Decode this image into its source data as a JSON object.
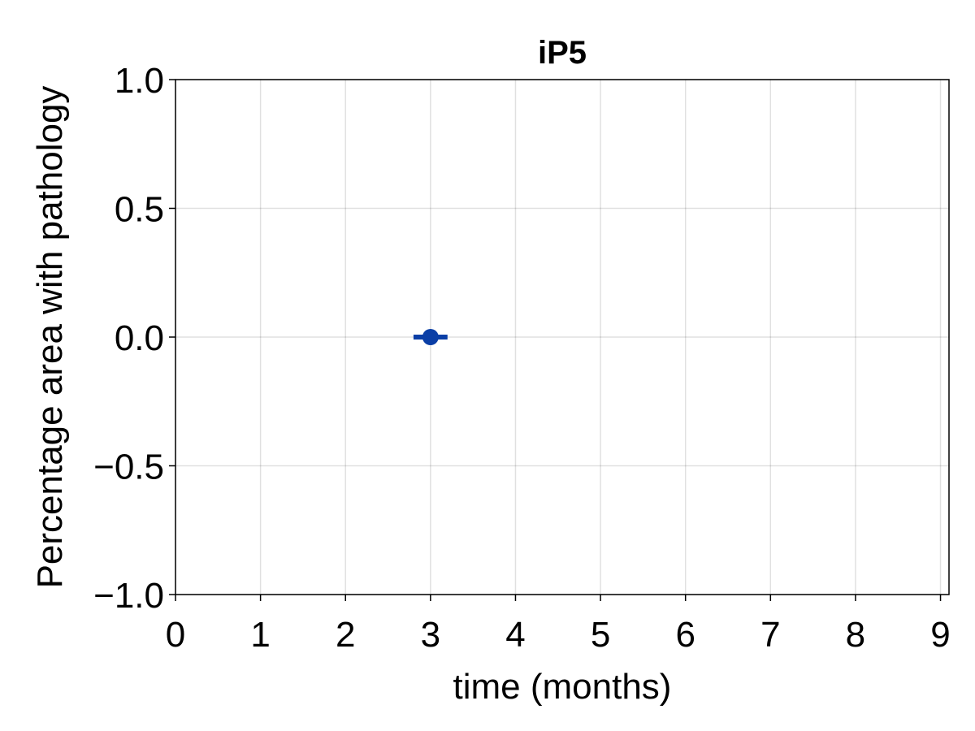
{
  "chart_data": {
    "type": "scatter",
    "title": "iP5",
    "xlabel": "time (months)",
    "ylabel": "Percentage area with pathology",
    "xlim": [
      0,
      9.1
    ],
    "ylim": [
      -1.0,
      1.0
    ],
    "xticks": [
      0,
      1,
      2,
      3,
      4,
      5,
      6,
      7,
      8,
      9
    ],
    "xtick_labels": [
      "0",
      "1",
      "2",
      "3",
      "4",
      "5",
      "6",
      "7",
      "8",
      "9"
    ],
    "yticks": [
      -1.0,
      -0.5,
      0.0,
      0.5,
      1.0
    ],
    "ytick_labels": [
      "−1.0",
      "−0.5",
      "0.0",
      "0.5",
      "1.0"
    ],
    "grid": true,
    "series": [
      {
        "points": [
          {
            "x": 3,
            "y": 0.0,
            "xerr_low": 2.8,
            "xerr_high": 3.2
          }
        ],
        "color": "#0a3ea6"
      }
    ]
  }
}
